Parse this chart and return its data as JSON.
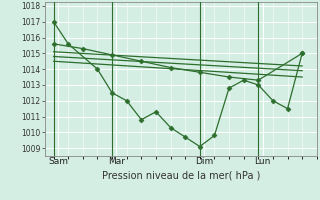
{
  "background_color": "#d4eee4",
  "plot_bg_color": "#d4eee4",
  "grid_color": "#ffffff",
  "line_color": "#2d6e2d",
  "xlabel": "Pression niveau de la mer( hPa )",
  "ylim": [
    1008.5,
    1018.25
  ],
  "yticks": [
    1009,
    1010,
    1011,
    1012,
    1013,
    1014,
    1015,
    1016,
    1017,
    1018
  ],
  "xtick_labels": [
    "Sam",
    "Mar",
    "Dim",
    "Lun"
  ],
  "vline_positions": [
    0.0,
    2.0,
    5.0,
    7.0
  ],
  "xlim": [
    -0.3,
    9.0
  ],
  "series_main_x": [
    0.0,
    0.5,
    1.5,
    2.0,
    2.5,
    3.0,
    3.5,
    4.0,
    4.5,
    5.0,
    5.5,
    6.0,
    6.5,
    7.0,
    7.5,
    8.0,
    8.5
  ],
  "series_main_y": [
    1017.0,
    1015.6,
    1014.0,
    1012.5,
    1012.0,
    1010.8,
    1011.3,
    1010.3,
    1009.7,
    1009.1,
    1009.8,
    1012.8,
    1013.3,
    1013.0,
    1012.0,
    1011.5,
    1015.0
  ],
  "series_smooth_x": [
    0.0,
    1.0,
    2.0,
    3.0,
    4.0,
    5.0,
    6.0,
    7.0,
    8.5
  ],
  "series_smooth_y": [
    1015.6,
    1015.3,
    1014.9,
    1014.5,
    1014.1,
    1013.8,
    1013.5,
    1013.3,
    1015.0
  ],
  "line1_x": [
    0.0,
    8.5
  ],
  "line1_y": [
    1015.1,
    1014.2
  ],
  "line2_x": [
    0.0,
    8.5
  ],
  "line2_y": [
    1014.8,
    1013.9
  ],
  "line3_x": [
    0.0,
    8.5
  ],
  "line3_y": [
    1014.5,
    1013.5
  ]
}
